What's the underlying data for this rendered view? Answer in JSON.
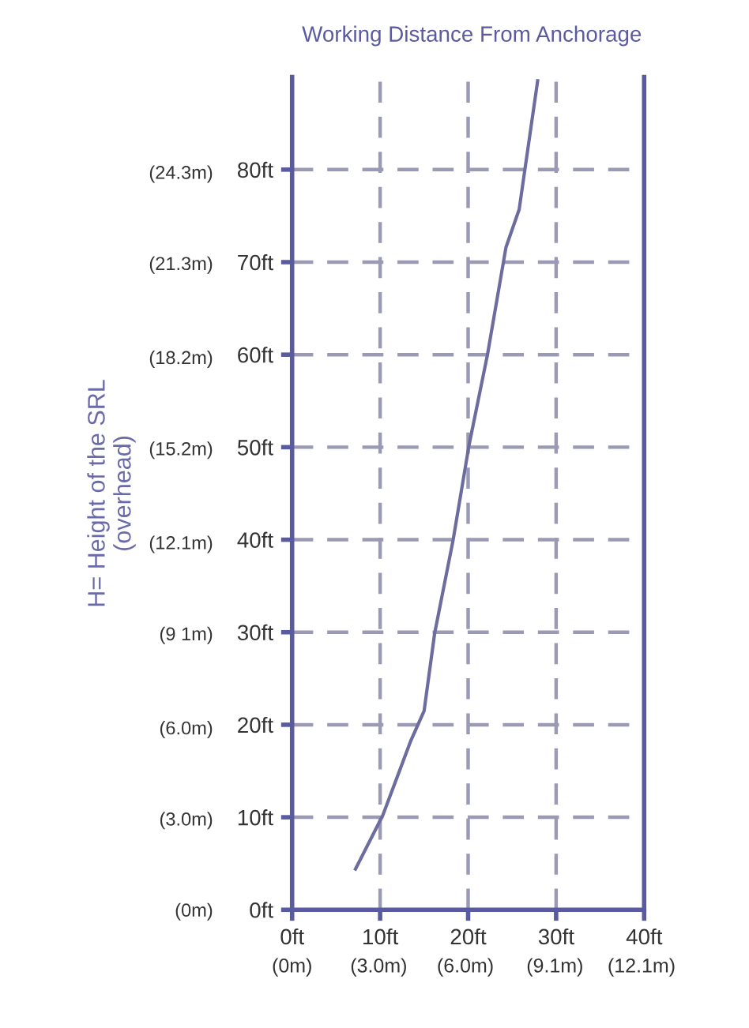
{
  "chart_data": {
    "type": "line",
    "title": "Working Distance From Anchorage",
    "y2label": "H= Height of the SRL\n(overhead)",
    "series": [
      {
        "color": "#6c6c9e",
        "x": [
          7.2,
          10.3,
          13.5,
          15,
          16.2,
          18.3,
          20.1,
          22.2,
          24.3,
          25.8,
          27.9
        ],
        "values": [
          4.4,
          10.2,
          18.3,
          21.5,
          29.9,
          40,
          50.2,
          60,
          71.6,
          75.7,
          89.6
        ]
      }
    ],
    "xlim": [
      0,
      40
    ],
    "ylim": [
      0,
      90
    ],
    "xticks": [
      {
        "value": 0,
        "label": "0ft"
      },
      {
        "value": 10,
        "label": "10ft"
      },
      {
        "value": 20,
        "label": "20ft"
      },
      {
        "value": 30,
        "label": "30ft"
      },
      {
        "value": 40,
        "label": "40ft"
      }
    ],
    "x2lim": [
      0,
      12.19
    ],
    "x2ticks": [
      {
        "value": 0,
        "label": "(0m)"
      },
      {
        "value": 3.0,
        "label": "(3.0m)"
      },
      {
        "value": 6.0,
        "label": "(6.0m)"
      },
      {
        "value": 9.1,
        "label": "(9.1m)"
      },
      {
        "value": 12.1,
        "label": "(12.1m)"
      }
    ],
    "yticks": [
      {
        "value": 0,
        "label": "0ft"
      },
      {
        "value": 10,
        "label": "10ft"
      },
      {
        "value": 20,
        "label": "20ft"
      },
      {
        "value": 30,
        "label": "30ft"
      },
      {
        "value": 40,
        "label": "40ft"
      },
      {
        "value": 50,
        "label": "50ft"
      },
      {
        "value": 60,
        "label": "60ft"
      },
      {
        "value": 70,
        "label": "70ft"
      },
      {
        "value": 80,
        "label": "80ft"
      }
    ],
    "y2lim": [
      0,
      27.43
    ],
    "y2ticks": [
      {
        "value": 0,
        "label": "(0m)"
      },
      {
        "value": 3.0,
        "label": "(3.0m)"
      },
      {
        "value": 6.0,
        "label": "(6.0m)"
      },
      {
        "value": 9.1,
        "label": "(9 1m)"
      },
      {
        "value": 12.1,
        "label": "(12.1m)"
      },
      {
        "value": 15.2,
        "label": "(15.2m)"
      },
      {
        "value": 18.2,
        "label": "(18.2m)"
      },
      {
        "value": 21.3,
        "label": "(21.3m)"
      },
      {
        "value": 24.3,
        "label": "(24.3m)"
      }
    ],
    "grid": true,
    "line_style": "solid",
    "marker": "none"
  }
}
